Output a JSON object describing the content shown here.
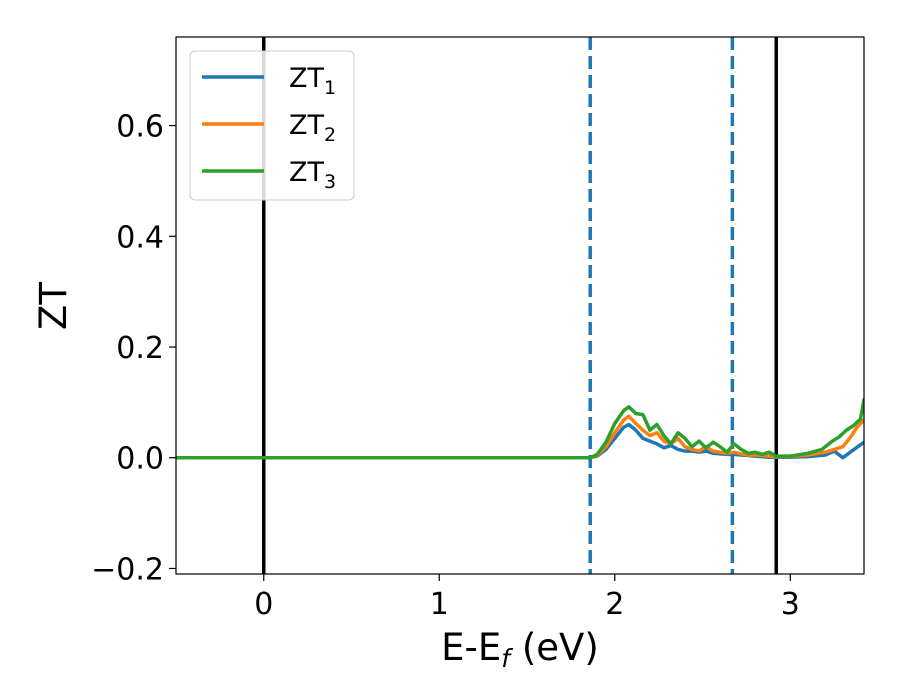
{
  "chart_data": {
    "type": "line",
    "title": "",
    "xlabel": "E-E",
    "xlabel_sub": "f",
    "xlabel_unit": " (eV)",
    "ylabel": "ZT",
    "xlim": [
      -0.5,
      3.42
    ],
    "ylim": [
      -0.21,
      0.76
    ],
    "xticks": [
      0,
      1,
      2,
      3
    ],
    "xtick_labels": [
      "0",
      "1",
      "2",
      "3"
    ],
    "yticks": [
      -0.2,
      0.0,
      0.2,
      0.4,
      0.6
    ],
    "ytick_labels": [
      "−0.2",
      "0.0",
      "0.2",
      "0.4",
      "0.6"
    ],
    "grid": false,
    "legend": {
      "position": "top-left",
      "entries": [
        {
          "base": "ZT",
          "sub": "1"
        },
        {
          "base": "ZT",
          "sub": "2"
        },
        {
          "base": "ZT",
          "sub": "3"
        }
      ]
    },
    "vertical_lines": [
      {
        "x": 0.0,
        "style": "solid",
        "color": "#000000"
      },
      {
        "x": 2.92,
        "style": "solid",
        "color": "#000000"
      },
      {
        "x": 1.86,
        "style": "dashed",
        "color": "#1f77b4"
      },
      {
        "x": 2.67,
        "style": "dashed",
        "color": "#1f77b4"
      }
    ],
    "series": [
      {
        "name": "ZT1",
        "color": "#1f77b4",
        "x": [
          -0.5,
          1.86,
          1.9,
          1.95,
          2.0,
          2.05,
          2.08,
          2.12,
          2.16,
          2.2,
          2.24,
          2.28,
          2.32,
          2.36,
          2.4,
          2.44,
          2.48,
          2.52,
          2.56,
          2.6,
          2.64,
          2.68,
          2.72,
          2.76,
          2.8,
          2.84,
          2.88,
          2.92,
          3.0,
          3.1,
          3.2,
          3.25,
          3.3,
          3.35,
          3.42
        ],
        "y": [
          0.0,
          0.0,
          0.003,
          0.015,
          0.035,
          0.055,
          0.06,
          0.05,
          0.035,
          0.03,
          0.025,
          0.018,
          0.022,
          0.015,
          0.012,
          0.012,
          0.01,
          0.012,
          0.008,
          0.007,
          0.006,
          0.006,
          0.005,
          0.004,
          0.003,
          0.002,
          0.001,
          0.001,
          0.001,
          0.002,
          0.005,
          0.012,
          0.0,
          0.012,
          0.028
        ]
      },
      {
        "name": "ZT2",
        "color": "#ff7f0e",
        "x": [
          -0.5,
          1.86,
          1.9,
          1.95,
          2.0,
          2.05,
          2.08,
          2.12,
          2.16,
          2.2,
          2.24,
          2.28,
          2.32,
          2.36,
          2.4,
          2.44,
          2.48,
          2.52,
          2.56,
          2.6,
          2.64,
          2.68,
          2.72,
          2.76,
          2.8,
          2.84,
          2.88,
          2.92,
          3.0,
          3.1,
          3.2,
          3.25,
          3.3,
          3.35,
          3.38,
          3.42
        ],
        "y": [
          0.0,
          0.0,
          0.004,
          0.02,
          0.045,
          0.068,
          0.075,
          0.062,
          0.05,
          0.04,
          0.045,
          0.03,
          0.025,
          0.035,
          0.02,
          0.015,
          0.012,
          0.02,
          0.012,
          0.01,
          0.008,
          0.01,
          0.007,
          0.005,
          0.005,
          0.004,
          0.003,
          0.002,
          0.002,
          0.005,
          0.01,
          0.015,
          0.02,
          0.04,
          0.055,
          0.068
        ]
      },
      {
        "name": "ZT3",
        "color": "#2ca02c",
        "x": [
          -0.5,
          1.86,
          1.9,
          1.95,
          2.0,
          2.05,
          2.08,
          2.12,
          2.16,
          2.2,
          2.24,
          2.28,
          2.32,
          2.36,
          2.4,
          2.44,
          2.48,
          2.52,
          2.56,
          2.6,
          2.64,
          2.68,
          2.72,
          2.76,
          2.8,
          2.84,
          2.88,
          2.92,
          3.0,
          3.1,
          3.18,
          3.24,
          3.28,
          3.32,
          3.36,
          3.4,
          3.42
        ],
        "y": [
          0.0,
          0.0,
          0.006,
          0.028,
          0.062,
          0.085,
          0.092,
          0.08,
          0.078,
          0.05,
          0.06,
          0.04,
          0.025,
          0.045,
          0.035,
          0.02,
          0.03,
          0.018,
          0.028,
          0.02,
          0.01,
          0.025,
          0.015,
          0.008,
          0.01,
          0.006,
          0.01,
          0.003,
          0.003,
          0.008,
          0.015,
          0.03,
          0.038,
          0.05,
          0.058,
          0.07,
          0.105
        ]
      }
    ]
  }
}
